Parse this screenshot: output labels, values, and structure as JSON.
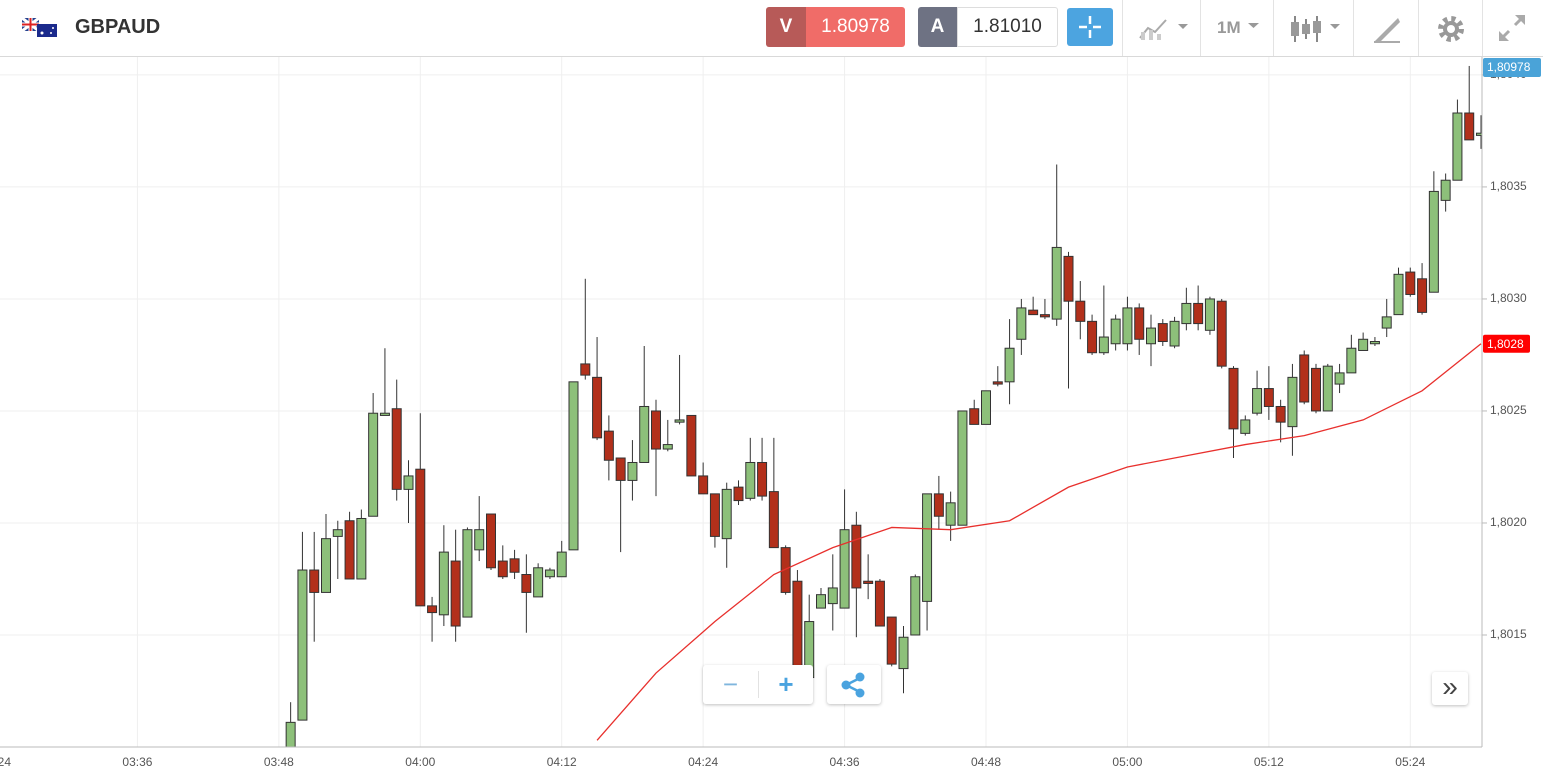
{
  "toolbar": {
    "symbol": "GBPAUD",
    "sell_label": "V",
    "sell_price": "1.80978",
    "buy_label": "A",
    "buy_price": "1.81010",
    "timeframe": "1M"
  },
  "controls": {
    "zoom_out": "−",
    "zoom_in": "+",
    "scroll": "»"
  },
  "chart_data": {
    "type": "candlestick",
    "x": [
      "03:49",
      "03:50",
      "03:51",
      "03:52",
      "03:53",
      "03:54",
      "03:55",
      "03:56",
      "03:57",
      "03:58",
      "03:59",
      "04:00",
      "04:01",
      "04:02",
      "04:03",
      "04:04",
      "04:05",
      "04:06",
      "04:07",
      "04:08",
      "04:09",
      "04:10",
      "04:11",
      "04:12",
      "04:13",
      "04:14",
      "04:15",
      "04:16",
      "04:17",
      "04:18",
      "04:19",
      "04:20",
      "04:21",
      "04:22",
      "04:23",
      "04:24",
      "04:25",
      "04:26",
      "04:27",
      "04:28",
      "04:29",
      "04:30",
      "04:31",
      "04:32",
      "04:33",
      "04:34",
      "04:35",
      "04:36",
      "04:37",
      "04:38",
      "04:39",
      "04:40",
      "04:41",
      "04:42",
      "04:43",
      "04:44",
      "04:45",
      "04:46",
      "04:47",
      "04:48",
      "04:49",
      "04:50",
      "04:51",
      "04:52",
      "04:53",
      "04:54",
      "04:55",
      "04:56",
      "04:57",
      "04:58",
      "04:59",
      "05:00",
      "05:01",
      "05:02",
      "05:03",
      "05:04",
      "05:05",
      "05:06",
      "05:07",
      "05:08",
      "05:09",
      "05:10",
      "05:11",
      "05:12",
      "05:13",
      "05:14",
      "05:15",
      "05:16",
      "05:17",
      "05:18",
      "05:19",
      "05:20",
      "05:21",
      "05:22",
      "05:23",
      "05:24",
      "05:25",
      "05:26",
      "05:27",
      "05:28",
      "05:29",
      "05:30"
    ],
    "open": [
      1.801,
      1.80112,
      1.80179,
      1.80169,
      1.80194,
      1.80201,
      1.80175,
      1.80203,
      1.80248,
      1.80251,
      1.80215,
      1.80224,
      1.80163,
      1.80159,
      1.80183,
      1.80158,
      1.80188,
      1.80204,
      1.80183,
      1.80184,
      1.80177,
      1.80167,
      1.80176,
      1.80176,
      1.80188,
      1.80271,
      1.80265,
      1.80241,
      1.80229,
      1.80219,
      1.80227,
      1.8025,
      1.80233,
      1.80245,
      1.80248,
      1.80221,
      1.80213,
      1.80193,
      1.80216,
      1.80211,
      1.80227,
      1.80214,
      1.80189,
      1.80174,
      1.80131,
      1.80162,
      1.80164,
      1.80162,
      1.80199,
      1.80174,
      1.80174,
      1.80158,
      1.80135,
      1.8015,
      1.80165,
      1.80213,
      1.80199,
      1.80199,
      1.80251,
      1.80244,
      1.80263,
      1.80263,
      1.80282,
      1.80295,
      1.80293,
      1.80291,
      1.80319,
      1.80299,
      1.8029,
      1.80276,
      1.8028,
      1.8028,
      1.80296,
      1.8028,
      1.80289,
      1.80279,
      1.80289,
      1.80298,
      1.80286,
      1.80299,
      1.80269,
      1.8024,
      1.80249,
      1.8026,
      1.80252,
      1.80243,
      1.80275,
      1.80269,
      1.8025,
      1.80262,
      1.80267,
      1.80277,
      1.8028,
      1.80287,
      1.80293,
      1.80312,
      1.80309,
      1.80303,
      1.80344,
      1.80353,
      1.80383,
      1.80373
    ],
    "high": [
      1.8012,
      1.80196,
      1.80196,
      1.80204,
      1.80201,
      1.80205,
      1.80206,
      1.80258,
      1.80278,
      1.80264,
      1.80228,
      1.80249,
      1.80167,
      1.80199,
      1.80197,
      1.80198,
      1.80212,
      1.80204,
      1.8019,
      1.80188,
      1.80186,
      1.80182,
      1.8018,
      1.80192,
      1.80263,
      1.80309,
      1.80283,
      1.80248,
      1.80229,
      1.80237,
      1.80279,
      1.80255,
      1.80246,
      1.80275,
      1.80248,
      1.80227,
      1.80213,
      1.80218,
      1.80219,
      1.80238,
      1.80238,
      1.80238,
      1.8019,
      1.80179,
      1.80168,
      1.80171,
      1.80186,
      1.80215,
      1.80205,
      1.80186,
      1.80175,
      1.80158,
      1.80154,
      1.80177,
      1.80213,
      1.80221,
      1.80214,
      1.8025,
      1.80255,
      1.80259,
      1.8027,
      1.80291,
      1.803,
      1.80301,
      1.803,
      1.8036,
      1.80321,
      1.80308,
      1.80293,
      1.80306,
      1.80293,
      1.80301,
      1.80298,
      1.80293,
      1.80291,
      1.80292,
      1.80305,
      1.80306,
      1.80301,
      1.803,
      1.8027,
      1.80248,
      1.80268,
      1.8027,
      1.80255,
      1.80271,
      1.80277,
      1.80271,
      1.80271,
      1.80271,
      1.80284,
      1.80285,
      1.80283,
      1.803,
      1.80314,
      1.80314,
      1.80316,
      1.80357,
      1.80356,
      1.80389,
      1.80404,
      1.80382
    ],
    "low": [
      1.801,
      1.80112,
      1.80147,
      1.80169,
      1.80175,
      1.80175,
      1.80175,
      1.80203,
      1.80248,
      1.8021,
      1.802,
      1.80163,
      1.80147,
      1.80154,
      1.80147,
      1.80158,
      1.80183,
      1.80179,
      1.80175,
      1.80175,
      1.80151,
      1.80167,
      1.80175,
      1.80176,
      1.80188,
      1.80264,
      1.80237,
      1.80219,
      1.80187,
      1.8021,
      1.80227,
      1.80212,
      1.80232,
      1.80244,
      1.80221,
      1.80213,
      1.80189,
      1.8018,
      1.80208,
      1.8021,
      1.8021,
      1.80189,
      1.80168,
      1.80125,
      1.80131,
      1.80162,
      1.80152,
      1.80162,
      1.80149,
      1.80166,
      1.80154,
      1.80136,
      1.80124,
      1.8015,
      1.80152,
      1.80197,
      1.80192,
      1.80199,
      1.80244,
      1.80244,
      1.80261,
      1.80253,
      1.80275,
      1.80293,
      1.80291,
      1.80288,
      1.8026,
      1.80282,
      1.80275,
      1.80275,
      1.80277,
      1.80277,
      1.80275,
      1.8027,
      1.80279,
      1.80278,
      1.80286,
      1.80286,
      1.80284,
      1.80269,
      1.80229,
      1.80239,
      1.80248,
      1.80246,
      1.80236,
      1.8023,
      1.80253,
      1.80249,
      1.8025,
      1.80258,
      1.80267,
      1.80277,
      1.80279,
      1.80283,
      1.80293,
      1.80301,
      1.80293,
      1.80303,
      1.80339,
      1.80353,
      1.80371,
      1.80367
    ],
    "close": [
      1.80111,
      1.80179,
      1.80169,
      1.80193,
      1.80197,
      1.80175,
      1.80202,
      1.80249,
      1.80249,
      1.80215,
      1.80221,
      1.80163,
      1.8016,
      1.80187,
      1.80154,
      1.80197,
      1.80197,
      1.8018,
      1.80176,
      1.80178,
      1.80169,
      1.8018,
      1.80179,
      1.80187,
      1.80263,
      1.80266,
      1.80238,
      1.80228,
      1.80219,
      1.80227,
      1.80252,
      1.80233,
      1.80235,
      1.80246,
      1.80221,
      1.80213,
      1.80194,
      1.80215,
      1.8021,
      1.80227,
      1.80212,
      1.80189,
      1.80169,
      1.80131,
      1.80156,
      1.80168,
      1.80171,
      1.80197,
      1.80171,
      1.80173,
      1.80154,
      1.80137,
      1.80149,
      1.80176,
      1.80213,
      1.80203,
      1.80209,
      1.8025,
      1.80244,
      1.80259,
      1.80262,
      1.80278,
      1.80296,
      1.80293,
      1.80292,
      1.80323,
      1.80299,
      1.8029,
      1.80276,
      1.80283,
      1.80291,
      1.80296,
      1.80282,
      1.80287,
      1.80281,
      1.8029,
      1.80298,
      1.80289,
      1.803,
      1.8027,
      1.80242,
      1.80246,
      1.8026,
      1.80252,
      1.80245,
      1.80265,
      1.80254,
      1.8025,
      1.8027,
      1.80267,
      1.80278,
      1.80282,
      1.80281,
      1.80292,
      1.80311,
      1.80302,
      1.80294,
      1.80348,
      1.80353,
      1.80383,
      1.80371,
      1.80374
    ],
    "up_color": "#8dc07a",
    "down_color": "#b2301b",
    "overlay": {
      "color": "#e8302d",
      "x": [
        "04:15",
        "04:20",
        "04:25",
        "04:30",
        "04:35",
        "04:40",
        "04:45",
        "04:50",
        "04:55",
        "05:00",
        "05:05",
        "05:10",
        "05:15",
        "05:20",
        "05:25",
        "05:30"
      ],
      "values": [
        1.80103,
        1.80133,
        1.80156,
        1.80177,
        1.80189,
        1.80198,
        1.80197,
        1.80201,
        1.80216,
        1.80225,
        1.8023,
        1.80235,
        1.80239,
        1.80246,
        1.80259,
        1.8028
      ]
    },
    "last_value_label": {
      "value": 1.8028,
      "label": "1,8028"
    },
    "price_label": "1,80978",
    "xlim": [
      "03:24",
      "05:30"
    ],
    "xticks": [
      "03:24",
      "03:36",
      "03:48",
      "04:00",
      "04:12",
      "04:24",
      "04:36",
      "04:48",
      "05:00",
      "05:12",
      "05:24"
    ],
    "ylim": [
      1.801,
      1.80408
    ],
    "yticks": [
      {
        "value": 1.8015,
        "label": "1,8015"
      },
      {
        "value": 1.802,
        "label": "1,8020"
      },
      {
        "value": 1.8025,
        "label": "1,8025"
      },
      {
        "value": 1.803,
        "label": "1,8030"
      },
      {
        "value": 1.8035,
        "label": "1,8035"
      },
      {
        "value": 1.804,
        "label": "1,8040"
      }
    ],
    "grid": true
  }
}
